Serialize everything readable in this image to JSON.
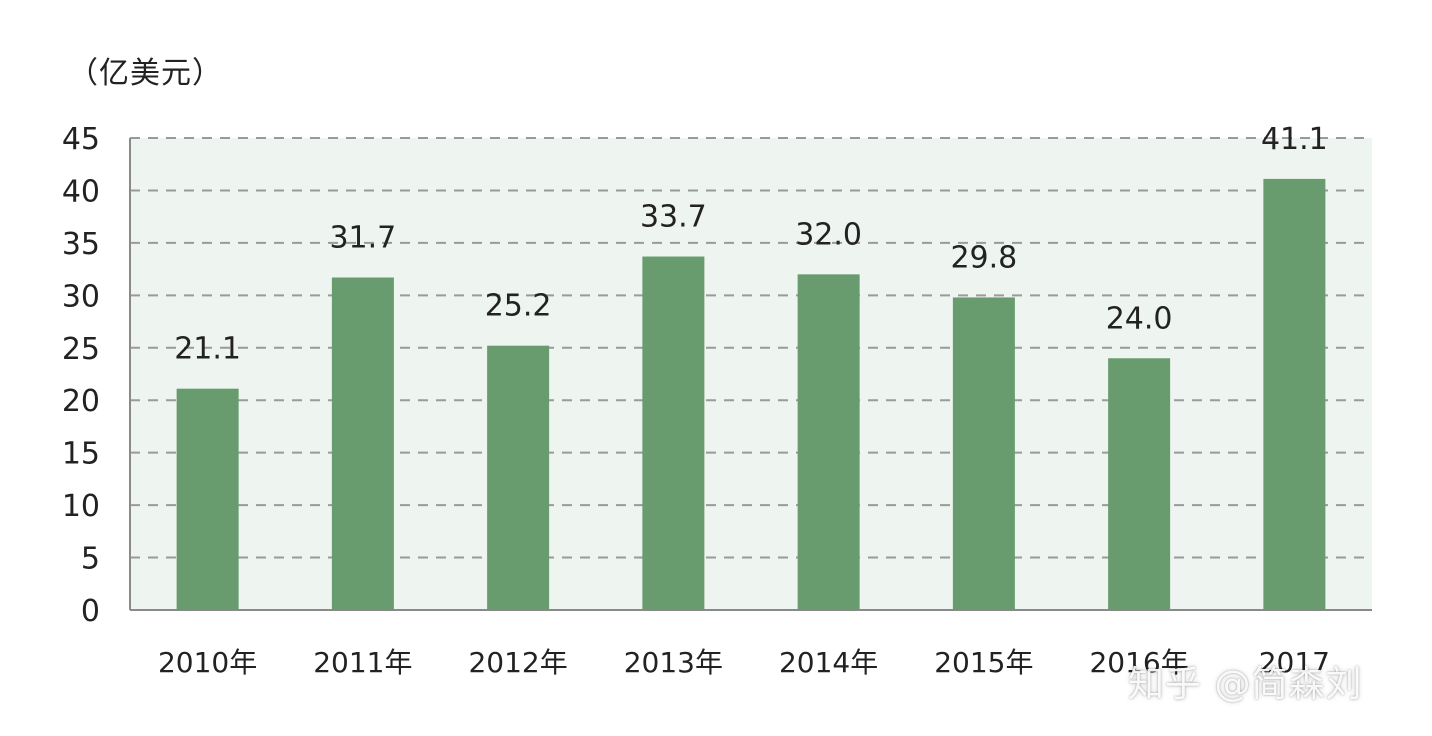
{
  "chart_data": {
    "type": "bar",
    "unit_label": "（亿美元）",
    "categories": [
      "2010年",
      "2011年",
      "2012年",
      "2013年",
      "2014年",
      "2015年",
      "2016年",
      "2017"
    ],
    "values": [
      21.1,
      31.7,
      25.2,
      33.7,
      32.0,
      29.8,
      24.0,
      41.1
    ],
    "value_labels": [
      "21.1",
      "31.7",
      "25.2",
      "33.7",
      "32.0",
      "29.8",
      "24.0",
      "41.1"
    ],
    "ylim": [
      0,
      45
    ],
    "yticks": [
      0,
      5,
      10,
      15,
      20,
      25,
      30,
      35,
      40,
      45
    ],
    "grid": true,
    "grid_style": "dashed",
    "legend": "none"
  },
  "colors": {
    "bar": "#689b6e",
    "plot_background": "#eef4ef",
    "grid": "#9a9a9a",
    "axis": "#8a8a8a",
    "text": "#222222"
  },
  "watermark": {
    "text": "知乎 @简森刘"
  }
}
